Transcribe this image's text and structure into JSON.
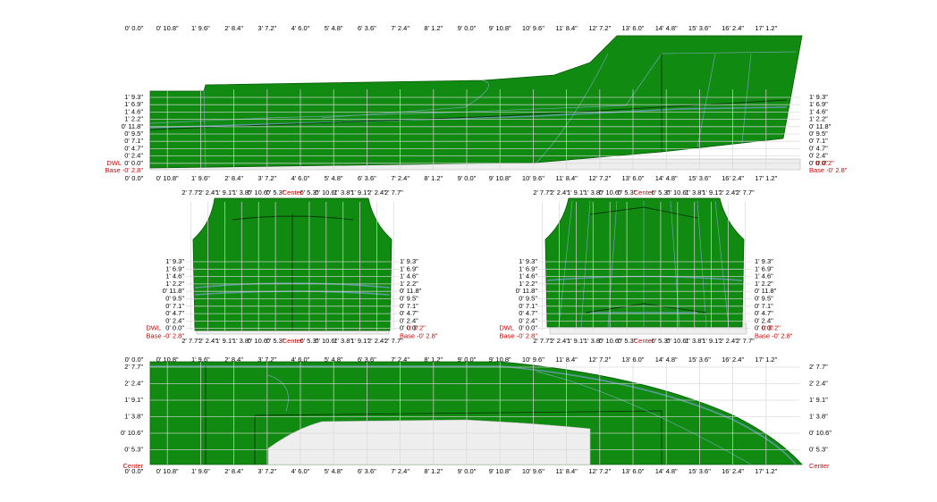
{
  "stations": [
    "0' 0.0\"",
    "0' 10.8\"",
    "1' 9.6\"",
    "2' 8.4\"",
    "3' 7.2\"",
    "4' 6.0\"",
    "5' 4.8\"",
    "6' 3.6\"",
    "7' 2.4\"",
    "8' 1.2\"",
    "9' 0.0\"",
    "9' 10.8\"",
    "10' 9.6\"",
    "11' 8.4\"",
    "12' 7.2\"",
    "13' 6.0\"",
    "14' 4.8\"",
    "15' 3.6\"",
    "16' 2.4\"",
    "17' 1.2\""
  ],
  "heights": [
    "1' 9.3\"",
    "1' 6.9\"",
    "1' 4.6\"",
    "1' 2.2\"",
    "0' 11.8\"",
    "0' 9.5\"",
    "0' 7.1\"",
    "0' 4.7\"",
    "0' 2.4\"",
    "0' 0.0\""
  ],
  "dwl": "DWL",
  "dwl_offset": "0' 0.2\"",
  "base": "Base -0' 2.8\"",
  "breadths": [
    "2' 7.7\"",
    "2' 2.4\"",
    "1' 9.1\"",
    "1' 3.8\"",
    "0' 10.6\"",
    "0' 5.3\""
  ],
  "center": "Center"
}
